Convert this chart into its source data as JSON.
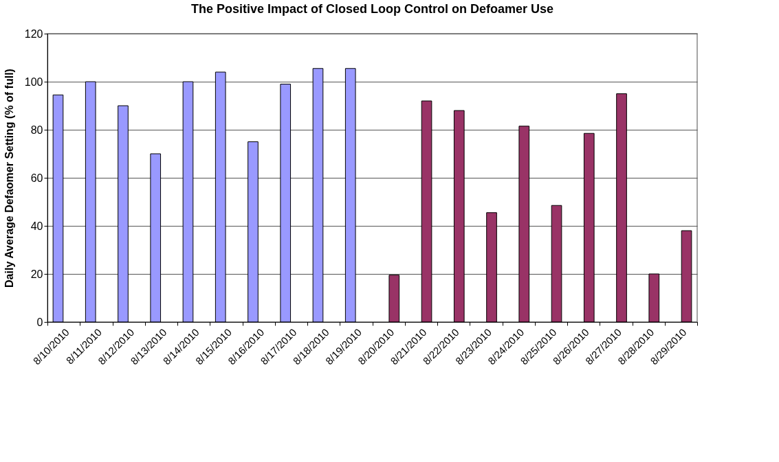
{
  "chart_data": {
    "type": "bar",
    "title": "The Positive Impact of Closed Loop Control on Defoamer Use",
    "ylabel": "Daily Average Defaomer Setting (% of full)",
    "categories": [
      "8/10/2010",
      "8/11/2010",
      "8/12/2010",
      "8/13/2010",
      "8/14/2010",
      "8/15/2010",
      "8/16/2010",
      "8/17/2010",
      "8/18/2010",
      "8/19/2010",
      "8/20/2010",
      "8/21/2010",
      "8/22/2010",
      "8/23/2010",
      "8/24/2010",
      "8/25/2010",
      "8/26/2010",
      "8/27/2010",
      "8/28/2010",
      "8/29/2010"
    ],
    "series": [
      {
        "color": "#9999ff",
        "values": [
          94.5,
          100,
          90,
          70,
          100,
          104,
          75,
          99,
          105.5,
          105.5,
          null,
          null,
          null,
          null,
          null,
          null,
          null,
          null,
          null,
          null
        ]
      },
      {
        "color": "#993366",
        "values": [
          null,
          null,
          null,
          null,
          null,
          null,
          null,
          null,
          null,
          null,
          19.5,
          92,
          88,
          45.5,
          81.5,
          48.5,
          78.5,
          95,
          20,
          38
        ]
      }
    ],
    "ylim": [
      0,
      120
    ],
    "yticks": [
      0,
      20,
      40,
      60,
      80,
      100,
      120
    ],
    "grid": "y",
    "legend": false
  }
}
